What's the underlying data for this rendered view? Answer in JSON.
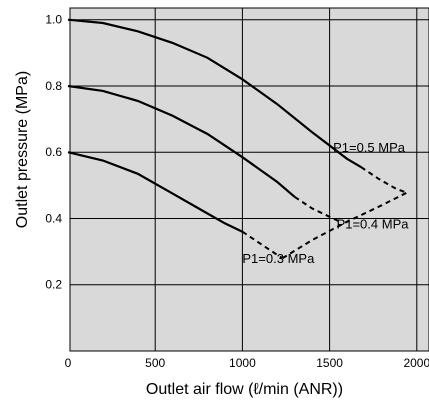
{
  "chart_data": {
    "type": "line",
    "title": "",
    "xlabel": "Outlet air flow (ℓ/min (ANR))",
    "ylabel": "Outlet pressure (MPa)",
    "xlim": [
      0,
      2050
    ],
    "ylim": [
      0.0,
      1.0
    ],
    "x_ticks": [
      "0",
      "500",
      "1000",
      "1500",
      "2000"
    ],
    "y_ticks": [
      "0.2",
      "0.4",
      "0.6",
      "0.8",
      "1.0"
    ],
    "grid": true,
    "background_color": "#d9d9d9",
    "line_color": "#000000",
    "series": [
      {
        "name": "P1=0.5 MPa",
        "x": [
          0,
          200,
          400,
          600,
          800,
          1000,
          1200,
          1400,
          1600,
          1680
        ],
        "y": [
          1.0,
          0.99,
          0.965,
          0.93,
          0.885,
          0.82,
          0.745,
          0.66,
          0.58,
          0.555
        ],
        "dashed_x": [
          1680,
          1780,
          1880,
          1930
        ],
        "dashed_y": [
          0.555,
          0.52,
          0.49,
          0.48
        ]
      },
      {
        "name": "P1=0.4 MPa",
        "x": [
          0,
          200,
          400,
          600,
          800,
          1000,
          1200,
          1300
        ],
        "y": [
          0.8,
          0.785,
          0.755,
          0.71,
          0.655,
          0.585,
          0.51,
          0.465
        ],
        "dashed_x": [
          1300,
          1400,
          1500,
          1560
        ],
        "dashed_y": [
          0.465,
          0.43,
          0.405,
          0.39
        ]
      },
      {
        "name": "P1=0.3 MPa",
        "x": [
          0,
          200,
          400,
          600,
          800,
          900,
          1000
        ],
        "y": [
          0.6,
          0.575,
          0.535,
          0.475,
          0.415,
          0.385,
          0.36
        ],
        "dashed_x": [
          1000,
          1100,
          1200,
          1230
        ],
        "dashed_y": [
          0.36,
          0.325,
          0.29,
          0.28
        ]
      }
    ],
    "envelope": {
      "x": [
        1230,
        1400,
        1600,
        1800,
        1950
      ],
      "y": [
        0.28,
        0.335,
        0.39,
        0.44,
        0.48
      ]
    },
    "annotations": [
      {
        "text": "P1=0.5 MPa",
        "x": 1520,
        "y": 0.6
      },
      {
        "text": "P1=0.4 MPa",
        "x": 1540,
        "y": 0.37
      },
      {
        "text": "P1=0.3 MPa",
        "x": 1000,
        "y": 0.265
      }
    ]
  }
}
